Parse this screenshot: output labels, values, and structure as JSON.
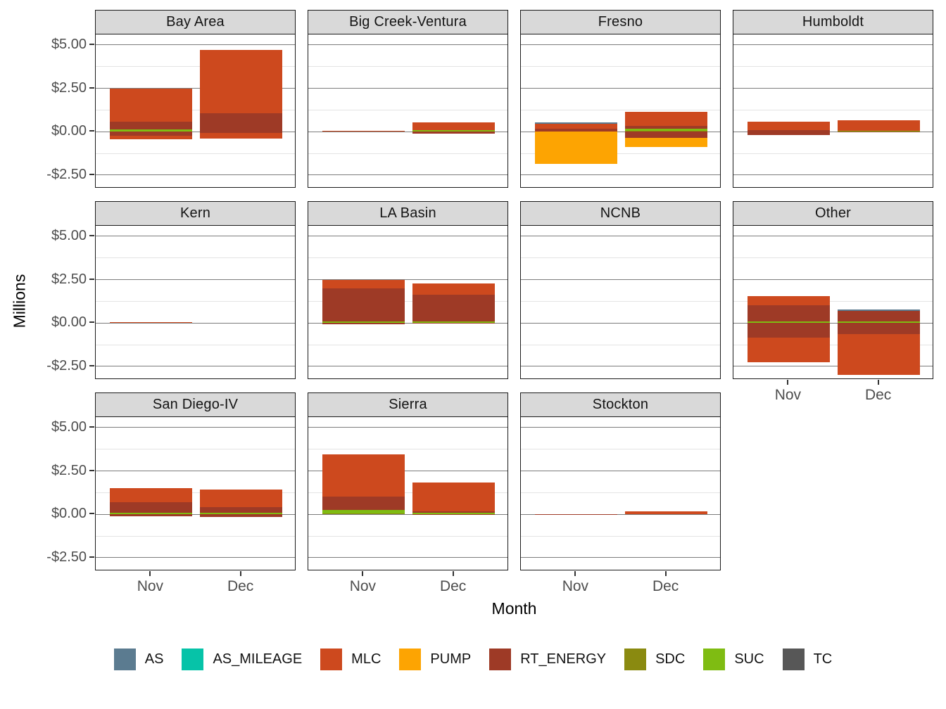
{
  "figure": {
    "x_axis_title": "Month",
    "y_axis_title": "Millions"
  },
  "colors": {
    "AS": "#5B7B90",
    "AS_MILEAGE": "#06C3A8",
    "MLC": "#CD491E",
    "PUMP": "#FDA402",
    "RT_ENERGY": "#9E3A26",
    "SDC": "#8A8A10",
    "SUC": "#7FBC12",
    "TC": "#575757"
  },
  "legend": {
    "items": [
      "AS",
      "AS_MILEAGE",
      "MLC",
      "PUMP",
      "RT_ENERGY",
      "SDC",
      "SUC",
      "TC"
    ]
  },
  "chart_data": {
    "type": "bar",
    "stacked": true,
    "facet_by": "region",
    "xlabel": "Month",
    "ylabel": "Millions",
    "categories": [
      "Nov",
      "Dec"
    ],
    "units": "USD millions",
    "ylim_top": 5.6,
    "ylim_bottom": -3.27,
    "y_ticks": [
      5,
      2.5,
      0,
      -2.5
    ],
    "y_tick_labels": [
      "$5.00",
      "$2.50",
      "$0.00",
      "-$2.50"
    ],
    "minor_ticks": [
      3.75,
      1.25,
      -1.25
    ],
    "grid": true,
    "legend_position": "bottom",
    "facets": [
      {
        "name": "Bay Area",
        "first_col": true,
        "show_x_labels": false,
        "bars": {
          "Nov": {
            "pos": [
              [
                "SUC",
                0.12
              ],
              [
                "RT_ENERGY",
                0.45
              ],
              [
                "MLC",
                1.93
              ]
            ],
            "neg": [
              [
                "RT_ENERGY",
                -0.22
              ],
              [
                "MLC",
                -0.2
              ]
            ]
          },
          "Dec": {
            "pos": [
              [
                "RT_ENERGY",
                1.08
              ],
              [
                "MLC",
                3.62
              ]
            ],
            "neg": [
              [
                "RT_ENERGY",
                -0.06
              ],
              [
                "MLC",
                -0.32
              ]
            ]
          }
        }
      },
      {
        "name": "Big Creek-Ventura",
        "first_col": false,
        "show_x_labels": false,
        "bars": {
          "Nov": {
            "pos": [
              [
                "MLC",
                0.05
              ]
            ],
            "neg": []
          },
          "Dec": {
            "pos": [
              [
                "SUC",
                0.1
              ],
              [
                "MLC",
                0.45
              ]
            ],
            "neg": [
              [
                "RT_ENERGY",
                -0.1
              ]
            ]
          }
        }
      },
      {
        "name": "Fresno",
        "first_col": false,
        "show_x_labels": false,
        "bars": {
          "Nov": {
            "pos": [
              [
                "RT_ENERGY",
                0.19
              ],
              [
                "MLC",
                0.25
              ],
              [
                "AS",
                0.08
              ]
            ],
            "neg": [
              [
                "PUMP",
                -1.85
              ]
            ]
          },
          "Dec": {
            "pos": [
              [
                "SDC",
                0.06
              ],
              [
                "SUC",
                0.1
              ],
              [
                "RT_ENERGY",
                0.17
              ],
              [
                "MLC",
                0.8
              ]
            ],
            "neg": [
              [
                "RT_ENERGY",
                -0.35
              ],
              [
                "PUMP",
                -0.55
              ]
            ]
          }
        }
      },
      {
        "name": "Humboldt",
        "first_col": false,
        "show_x_labels": false,
        "bars": {
          "Nov": {
            "pos": [
              [
                "RT_ENERGY",
                0.08
              ],
              [
                "MLC",
                0.48
              ]
            ],
            "neg": [
              [
                "RT_ENERGY",
                -0.2
              ]
            ]
          },
          "Dec": {
            "pos": [
              [
                "SUC",
                0.06
              ],
              [
                "MLC",
                0.6
              ]
            ],
            "neg": [
              [
                "RT_ENERGY",
                -0.05
              ]
            ]
          }
        }
      },
      {
        "name": "Kern",
        "first_col": true,
        "show_x_labels": false,
        "bars": {
          "Nov": {
            "pos": [
              [
                "MLC",
                0.07
              ]
            ],
            "neg": []
          },
          "Dec": {
            "pos": [],
            "neg": []
          }
        }
      },
      {
        "name": "LA Basin",
        "first_col": false,
        "show_x_labels": false,
        "bars": {
          "Nov": {
            "pos": [
              [
                "SUC",
                0.1
              ],
              [
                "RT_ENERGY",
                1.88
              ],
              [
                "MLC",
                0.5
              ]
            ],
            "neg": [
              [
                "RT_ENERGY",
                -0.08
              ]
            ]
          },
          "Dec": {
            "pos": [
              [
                "SUC",
                0.1
              ],
              [
                "RT_ENERGY",
                1.55
              ],
              [
                "MLC",
                0.63
              ]
            ],
            "neg": [
              [
                "RT_ENERGY",
                -0.05
              ]
            ]
          }
        }
      },
      {
        "name": "NCNB",
        "first_col": false,
        "show_x_labels": false,
        "bars": {
          "Nov": {
            "pos": [],
            "neg": []
          },
          "Dec": {
            "pos": [],
            "neg": []
          }
        }
      },
      {
        "name": "Other",
        "first_col": false,
        "show_x_labels": true,
        "bars": {
          "Nov": {
            "pos": [
              [
                "SUC",
                0.08
              ],
              [
                "RT_ENERGY",
                0.95
              ],
              [
                "MLC",
                0.52
              ]
            ],
            "neg": [
              [
                "RT_ENERGY",
                -0.85
              ],
              [
                "MLC",
                -1.4
              ]
            ]
          },
          "Dec": {
            "pos": [
              [
                "SUC",
                0.08
              ],
              [
                "RT_ENERGY",
                0.62
              ],
              [
                "AS",
                0.07
              ]
            ],
            "neg": [
              [
                "RT_ENERGY",
                -0.65
              ],
              [
                "MLC",
                -2.35
              ]
            ]
          }
        }
      },
      {
        "name": "San Diego-IV",
        "first_col": true,
        "show_x_labels": true,
        "bars": {
          "Nov": {
            "pos": [
              [
                "SUC",
                0.08
              ],
              [
                "RT_ENERGY",
                0.6
              ],
              [
                "MLC",
                0.83
              ]
            ],
            "neg": [
              [
                "RT_ENERGY",
                -0.12
              ]
            ]
          },
          "Dec": {
            "pos": [
              [
                "SUC",
                0.08
              ],
              [
                "RT_ENERGY",
                0.32
              ],
              [
                "MLC",
                1.03
              ]
            ],
            "neg": [
              [
                "RT_ENERGY",
                -0.15
              ]
            ]
          }
        }
      },
      {
        "name": "Sierra",
        "first_col": false,
        "show_x_labels": true,
        "bars": {
          "Nov": {
            "pos": [
              [
                "SDC",
                0.06
              ],
              [
                "SUC",
                0.2
              ],
              [
                "RT_ENERGY",
                0.77
              ],
              [
                "MLC",
                2.42
              ]
            ],
            "neg": []
          },
          "Dec": {
            "pos": [
              [
                "SUC",
                0.09
              ],
              [
                "RT_ENERGY",
                0.1
              ],
              [
                "MLC",
                1.63
              ]
            ],
            "neg": [
              [
                "RT_ENERGY",
                -0.05
              ]
            ]
          }
        }
      },
      {
        "name": "Stockton",
        "first_col": false,
        "show_x_labels": true,
        "bars": {
          "Nov": {
            "pos": [
              [
                "MLC",
                0.02
              ]
            ],
            "neg": [
              [
                "RT_ENERGY",
                -0.02
              ]
            ]
          },
          "Dec": {
            "pos": [
              [
                "MLC",
                0.18
              ]
            ],
            "neg": []
          }
        }
      }
    ]
  }
}
